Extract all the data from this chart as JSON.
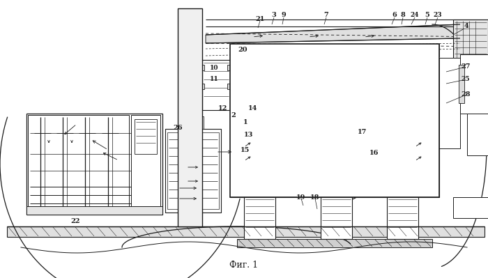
{
  "bg_color": "#ffffff",
  "line_color": "#1a1a1a",
  "caption": "Фиг. 1",
  "caption_fontsize": 9,
  "figsize": [
    7.0,
    3.99
  ],
  "dpi": 100
}
